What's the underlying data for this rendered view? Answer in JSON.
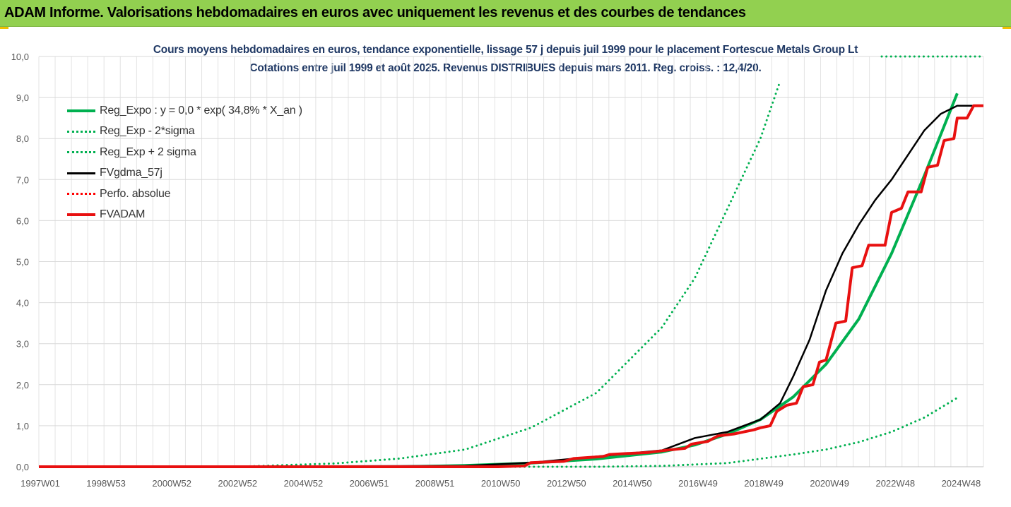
{
  "banner": {
    "title": "ADAM Informe. Valorisations hebdomadaires en euros avec uniquement les revenus et des courbes de tendances"
  },
  "chart_data": {
    "type": "line",
    "title_line1": "Cours moyens hebdomadaires en euros, tendance exponentielle, lissage 57 j depuis juil 1999 pour le placement Fortescue Metals Group Lt",
    "title_line2": "Cotations entre juil 1999 et août 2025. Revenus DISTRIBUES depuis mars 2011. Reg. croiss. : 12,4/20.",
    "ylim": [
      0,
      10
    ],
    "y_ticks": [
      "0,0",
      "1,0",
      "2,0",
      "3,0",
      "4,0",
      "5,0",
      "6,0",
      "7,0",
      "8,0",
      "9,0",
      "10,0"
    ],
    "x_ticks": [
      "1997W01",
      "1998W53",
      "2000W52",
      "2002W52",
      "2004W52",
      "2006W51",
      "2008W51",
      "2010W50",
      "2012W50",
      "2014W50",
      "2016W49",
      "2018W49",
      "2020W49",
      "2022W48",
      "2024W48"
    ],
    "x_range_years": [
      1997.0,
      2025.8
    ],
    "grid": true,
    "legend_position": "top-left",
    "series": [
      {
        "name": "Reg_Expo : y = 0,0 * exp( 34,8% *  X_an )",
        "color": "#00b050",
        "style": "solid",
        "points": [
          [
            1997.0,
            0.0
          ],
          [
            2008.0,
            0.0
          ],
          [
            2010.0,
            0.03
          ],
          [
            2012.0,
            0.09
          ],
          [
            2014.0,
            0.19
          ],
          [
            2016.0,
            0.36
          ],
          [
            2017.0,
            0.53
          ],
          [
            2018.0,
            0.8
          ],
          [
            2019.0,
            1.15
          ],
          [
            2020.0,
            1.7
          ],
          [
            2021.0,
            2.5
          ],
          [
            2022.0,
            3.6
          ],
          [
            2023.0,
            5.2
          ],
          [
            2024.0,
            7.1
          ],
          [
            2025.0,
            9.1
          ]
        ]
      },
      {
        "name": "Reg_Exp - 2*sigma",
        "color": "#00b050",
        "style": "dotted",
        "points": [
          [
            2002.0,
            0.0
          ],
          [
            2014.0,
            0.0
          ],
          [
            2016.0,
            0.02
          ],
          [
            2018.0,
            0.09
          ],
          [
            2020.0,
            0.3
          ],
          [
            2021.0,
            0.42
          ],
          [
            2022.0,
            0.6
          ],
          [
            2023.0,
            0.85
          ],
          [
            2024.0,
            1.2
          ],
          [
            2025.0,
            1.68
          ]
        ]
      },
      {
        "name": "Reg_Exp + 2 sigma",
        "color": "#00b050",
        "style": "dotted",
        "points": [
          [
            2003.0,
            0.0
          ],
          [
            2006.0,
            0.08
          ],
          [
            2008.0,
            0.2
          ],
          [
            2010.0,
            0.42
          ],
          [
            2012.0,
            0.95
          ],
          [
            2014.0,
            1.8
          ],
          [
            2016.0,
            3.4
          ],
          [
            2017.0,
            4.6
          ],
          [
            2018.0,
            6.3
          ],
          [
            2019.0,
            8.0
          ],
          [
            2019.6,
            9.4
          ]
        ]
      },
      {
        "name": "FVgdma_57j",
        "color": "#000000",
        "style": "solid",
        "points": [
          [
            1997.0,
            0.0
          ],
          [
            2010.0,
            0.02
          ],
          [
            2012.0,
            0.1
          ],
          [
            2014.0,
            0.25
          ],
          [
            2016.0,
            0.4
          ],
          [
            2017.0,
            0.7
          ],
          [
            2018.0,
            0.85
          ],
          [
            2019.0,
            1.15
          ],
          [
            2019.6,
            1.55
          ],
          [
            2020.0,
            2.2
          ],
          [
            2020.5,
            3.1
          ],
          [
            2021.0,
            4.3
          ],
          [
            2021.5,
            5.2
          ],
          [
            2022.0,
            5.9
          ],
          [
            2022.5,
            6.5
          ],
          [
            2023.0,
            7.0
          ],
          [
            2023.5,
            7.6
          ],
          [
            2024.0,
            8.2
          ],
          [
            2024.5,
            8.6
          ],
          [
            2025.0,
            8.8
          ],
          [
            2025.5,
            8.8
          ]
        ]
      },
      {
        "name": "Perfo. absolue",
        "color": "#ff0000",
        "style": "dotted",
        "points": []
      },
      {
        "name": "FVADAM",
        "color": "#e81010",
        "style": "solid",
        "points": [
          [
            1997.0,
            0.0
          ],
          [
            2011.0,
            0.0
          ],
          [
            2011.8,
            0.02
          ],
          [
            2012.0,
            0.1
          ],
          [
            2013.0,
            0.13
          ],
          [
            2013.3,
            0.2
          ],
          [
            2014.2,
            0.25
          ],
          [
            2014.4,
            0.3
          ],
          [
            2015.6,
            0.35
          ],
          [
            2016.1,
            0.4
          ],
          [
            2016.7,
            0.45
          ],
          [
            2016.9,
            0.55
          ],
          [
            2017.4,
            0.62
          ],
          [
            2017.7,
            0.75
          ],
          [
            2018.2,
            0.8
          ],
          [
            2018.5,
            0.85
          ],
          [
            2018.8,
            0.9
          ],
          [
            2019.0,
            0.95
          ],
          [
            2019.3,
            1.0
          ],
          [
            2019.5,
            1.35
          ],
          [
            2019.8,
            1.5
          ],
          [
            2020.1,
            1.55
          ],
          [
            2020.3,
            1.95
          ],
          [
            2020.6,
            2.0
          ],
          [
            2020.8,
            2.55
          ],
          [
            2021.0,
            2.6
          ],
          [
            2021.3,
            3.5
          ],
          [
            2021.6,
            3.55
          ],
          [
            2021.8,
            4.85
          ],
          [
            2022.1,
            4.9
          ],
          [
            2022.3,
            5.4
          ],
          [
            2022.8,
            5.4
          ],
          [
            2023.0,
            6.2
          ],
          [
            2023.3,
            6.3
          ],
          [
            2023.5,
            6.7
          ],
          [
            2023.9,
            6.7
          ],
          [
            2024.1,
            7.3
          ],
          [
            2024.4,
            7.35
          ],
          [
            2024.6,
            7.95
          ],
          [
            2024.9,
            8.0
          ],
          [
            2025.0,
            8.5
          ],
          [
            2025.3,
            8.5
          ],
          [
            2025.5,
            8.8
          ],
          [
            2025.8,
            8.8
          ]
        ]
      }
    ]
  }
}
